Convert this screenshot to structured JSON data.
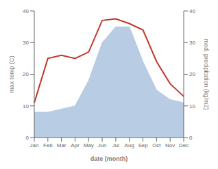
{
  "chart_data": {
    "type": "line",
    "categories": [
      "Jan",
      "Feb",
      "Mar",
      "Apr",
      "May",
      "Jun",
      "Jul",
      "Aug",
      "Sep",
      "Oct",
      "Nov",
      "Dec"
    ],
    "xlabel": "date (month)",
    "ylabel": "max temp (C)",
    "y2label": "med. precipitation (kg/m2)",
    "ylim": [
      0,
      40
    ],
    "yticks": [
      0,
      10,
      20,
      30,
      40
    ],
    "y2lim": [
      0,
      40
    ],
    "y2ticks": [
      0,
      10,
      20,
      30,
      40
    ],
    "grid": false,
    "series": [
      {
        "type": "area",
        "axis": "y2",
        "color": "#b8cce4",
        "values": [
          8,
          8,
          9,
          10,
          18,
          30,
          35,
          35,
          24,
          15,
          12,
          11
        ]
      },
      {
        "type": "line",
        "axis": "y",
        "color": "#c0392b",
        "values": [
          11,
          25,
          26,
          25,
          27,
          37,
          37.5,
          36,
          34,
          24,
          17,
          13
        ]
      }
    ]
  }
}
